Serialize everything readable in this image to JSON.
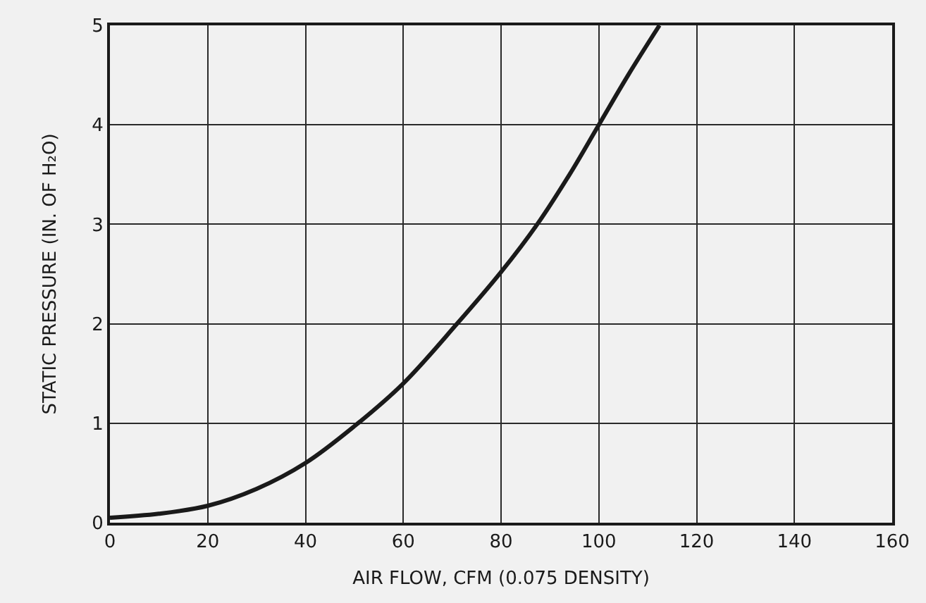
{
  "chart_data": {
    "type": "line",
    "xlabel": "AIR FLOW, CFM (0.075 DENSITY)",
    "ylabel": "STATIC PRESSURE (IN. OF H₂O)",
    "x": [
      0,
      10,
      20,
      30,
      40,
      50,
      60,
      71,
      80,
      87.4,
      94,
      100,
      106,
      112.4
    ],
    "series": [
      {
        "color": "#1a1a1a",
        "values": [
          0.05,
          0.09,
          0.17,
          0.34,
          0.6,
          0.97,
          1.4,
          2,
          2.52,
          3,
          3.5,
          4,
          4.5,
          5
        ]
      }
    ],
    "xlim": [
      0,
      160
    ],
    "ylim": [
      0,
      5
    ],
    "xticks": [
      0,
      20,
      40,
      60,
      80,
      100,
      120,
      140,
      160
    ],
    "yticks": [
      0,
      1,
      2,
      3,
      4,
      5
    ],
    "grid": true,
    "line_style": "solid"
  }
}
